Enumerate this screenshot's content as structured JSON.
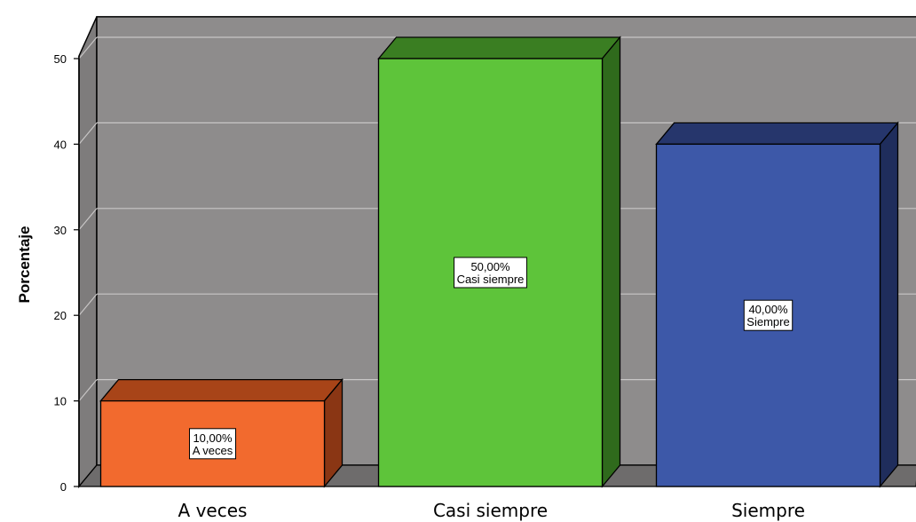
{
  "chart_data": {
    "type": "bar",
    "title": "",
    "xlabel": "",
    "ylabel": "Porcentaje",
    "ylim": [
      0,
      50
    ],
    "yticks": [
      0,
      10,
      20,
      30,
      40,
      50
    ],
    "grid": true,
    "style": "3d",
    "categories": [
      "A veces",
      "Casi siempre",
      "Siempre"
    ],
    "values": [
      10,
      50,
      40
    ],
    "data_labels": [
      {
        "value": "10,00%",
        "category": "A veces"
      },
      {
        "value": "50,00%",
        "category": "Casi siempre"
      },
      {
        "value": "40,00%",
        "category": "Siempre"
      }
    ],
    "colors": [
      {
        "front": "#F26A2E",
        "top": "#A84418",
        "side": "#8A3614"
      },
      {
        "front": "#5EC43A",
        "top": "#3A7E22",
        "side": "#2F6A1C"
      },
      {
        "front": "#3D58A8",
        "top": "#26366C",
        "side": "#1F2D5C"
      }
    ],
    "plot_color": "#8E8C8C",
    "wall_color": "#7E7C7C"
  }
}
